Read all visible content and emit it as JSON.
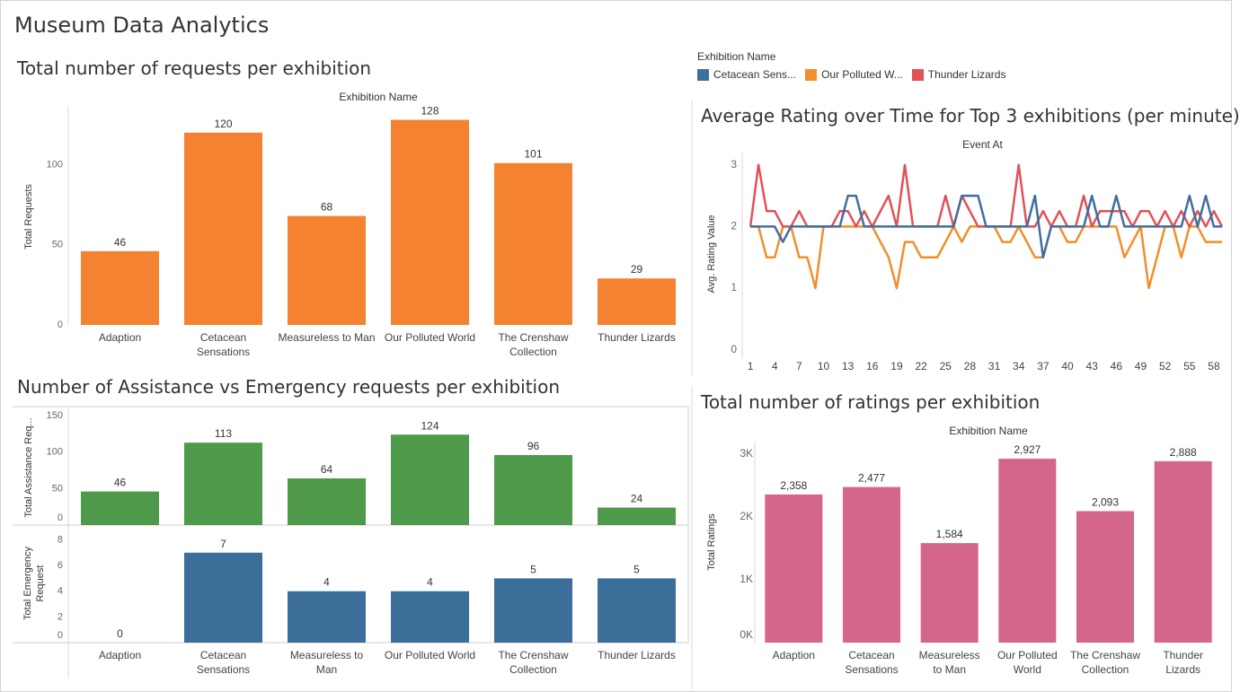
{
  "dashboard": {
    "title": "Museum Data Analytics"
  },
  "colors": {
    "orange": "#f58230",
    "green": "#4e9a4a",
    "blue": "#3b6e99",
    "pink": "#d4668a",
    "line_blue": "#3e6f9f",
    "line_orange": "#f28e2b",
    "line_red": "#e05258"
  },
  "chart_data": [
    {
      "id": "requests",
      "type": "bar",
      "title": "Total number of requests per exhibition",
      "header": "Exhibition Name",
      "ylabel": "Total Requests",
      "categories": [
        "Adaption",
        "Cetacean Sensations",
        "Measureless to Man",
        "Our Polluted World",
        "The Crenshaw Collection",
        "Thunder Lizards"
      ],
      "category_lines": [
        [
          "Adaption"
        ],
        [
          "Cetacean",
          "Sensations"
        ],
        [
          "Measureless to Man"
        ],
        [
          "Our Polluted World"
        ],
        [
          "The Crenshaw",
          "Collection"
        ],
        [
          "Thunder Lizards"
        ]
      ],
      "values": [
        46,
        120,
        68,
        128,
        101,
        29
      ],
      "labels": [
        "46",
        "120",
        "68",
        "128",
        "101",
        "29"
      ],
      "yticks": [
        0,
        50,
        100
      ],
      "ylim": [
        0,
        135
      ]
    },
    {
      "id": "assist_emerg",
      "type": "bar",
      "title": "Number of Assistance vs Emergency requests per exhibition",
      "categories": [
        "Adaption",
        "Cetacean Sensations",
        "Measureless to Man",
        "Our Polluted World",
        "The Crenshaw Collection",
        "Thunder Lizards"
      ],
      "category_lines": [
        [
          "Adaption"
        ],
        [
          "Cetacean",
          "Sensations"
        ],
        [
          "Measureless to",
          "Man"
        ],
        [
          "Our Polluted World"
        ],
        [
          "The Crenshaw",
          "Collection"
        ],
        [
          "Thunder Lizards"
        ]
      ],
      "series": [
        {
          "name": "Total Assistance Requests",
          "axis_label": "Total Assistance Req...",
          "values": [
            46,
            113,
            64,
            124,
            96,
            24
          ],
          "labels": [
            "46",
            "113",
            "64",
            "124",
            "96",
            "24"
          ],
          "yticks": [
            0,
            50,
            100,
            150
          ],
          "ylim": [
            0,
            160
          ]
        },
        {
          "name": "Total Emergency Request",
          "axis_label_lines": [
            "Total Emergency",
            "Request"
          ],
          "values": [
            0,
            7,
            4,
            4,
            5,
            5
          ],
          "labels": [
            "0",
            "7",
            "4",
            "4",
            "5",
            "5"
          ],
          "yticks": [
            0,
            2,
            4,
            6,
            8
          ],
          "ylim": [
            0,
            8.8
          ]
        }
      ]
    },
    {
      "id": "ratings_time",
      "type": "line",
      "title": "Average Rating over Time for Top 3 exhibitions (per minute)",
      "header": "Event At",
      "ylabel": "Avg. Rating Value",
      "legend_title": "Exhibition Name",
      "legend_placement": "top",
      "xticks": [
        1,
        4,
        7,
        10,
        13,
        16,
        19,
        22,
        25,
        28,
        31,
        34,
        37,
        40,
        43,
        46,
        49,
        52,
        55,
        58
      ],
      "yticks": [
        0,
        1,
        2,
        3
      ],
      "xlim": [
        0,
        59
      ],
      "ylim": [
        -0.15,
        3.2
      ],
      "series": [
        {
          "name": "Cetacean Sens...",
          "x": [
            1,
            2,
            3,
            4,
            5,
            6,
            7,
            8,
            9,
            10,
            11,
            12,
            13,
            14,
            15,
            16,
            17,
            18,
            19,
            20,
            21,
            22,
            23,
            24,
            25,
            26,
            27,
            28,
            29,
            30,
            31,
            32,
            33,
            34,
            35,
            36,
            37,
            38,
            39,
            40,
            41,
            42,
            43,
            44,
            45,
            46,
            47,
            48,
            49,
            50,
            51,
            52,
            53,
            54,
            55,
            56,
            57,
            58,
            59
          ],
          "y": [
            2,
            2,
            2,
            2,
            1.75,
            2,
            2,
            2,
            2,
            2,
            2,
            2,
            2.5,
            2.5,
            2,
            2,
            2,
            2,
            2,
            2,
            2,
            2,
            2,
            2,
            2,
            2,
            2.5,
            2.5,
            2.5,
            2,
            2,
            2,
            2,
            2,
            2,
            2.5,
            1.5,
            2,
            2,
            2,
            2,
            2,
            2.5,
            2,
            2,
            2.5,
            2,
            2,
            2,
            2,
            2,
            2,
            2,
            2,
            2.5,
            2,
            2.5,
            2,
            2
          ]
        },
        {
          "name": "Our Polluted W...",
          "x": [
            1,
            2,
            3,
            4,
            5,
            6,
            7,
            8,
            9,
            10,
            11,
            12,
            13,
            14,
            15,
            16,
            17,
            18,
            19,
            20,
            21,
            22,
            23,
            24,
            25,
            26,
            27,
            28,
            29,
            30,
            31,
            32,
            33,
            34,
            35,
            36,
            37,
            38,
            39,
            40,
            41,
            42,
            43,
            44,
            45,
            46,
            47,
            48,
            49,
            50,
            51,
            52,
            53,
            54,
            55,
            56,
            57,
            58,
            59
          ],
          "y": [
            2,
            2,
            1.5,
            1.5,
            2,
            2,
            1.5,
            1.5,
            1,
            2,
            2,
            2,
            2,
            2,
            2,
            2,
            1.75,
            1.5,
            1,
            1.75,
            1.75,
            1.5,
            1.5,
            1.5,
            1.75,
            2,
            1.75,
            2,
            2,
            2,
            2,
            1.75,
            1.75,
            2,
            1.75,
            1.5,
            1.5,
            2,
            2,
            1.75,
            1.75,
            2,
            2,
            2,
            2,
            2,
            1.5,
            1.75,
            2,
            1,
            1.5,
            2,
            2,
            1.5,
            2,
            2,
            1.75,
            1.75,
            1.75
          ]
        },
        {
          "name": "Thunder Lizards",
          "x": [
            1,
            2,
            3,
            4,
            5,
            6,
            7,
            8,
            9,
            10,
            11,
            12,
            13,
            14,
            15,
            16,
            17,
            18,
            19,
            20,
            21,
            22,
            23,
            24,
            25,
            26,
            27,
            28,
            29,
            30,
            31,
            32,
            33,
            34,
            35,
            36,
            37,
            38,
            39,
            40,
            41,
            42,
            43,
            44,
            45,
            46,
            47,
            48,
            49,
            50,
            51,
            52,
            53,
            54,
            55,
            56,
            57,
            58,
            59
          ],
          "y": [
            2,
            3,
            2.25,
            2.25,
            2,
            2,
            2.25,
            2,
            2,
            2,
            2,
            2.25,
            2.25,
            2,
            2.25,
            2,
            2.25,
            2.5,
            2,
            3,
            2,
            2,
            2,
            2,
            2.5,
            2,
            2.5,
            2.25,
            2,
            2,
            2,
            2,
            2,
            3,
            2,
            2,
            2.25,
            2,
            2.25,
            2,
            2,
            2.5,
            2,
            2.25,
            2.25,
            2.25,
            2.25,
            2,
            2.25,
            2.25,
            2,
            2.25,
            2,
            2.25,
            2,
            2.25,
            2,
            2.25,
            2
          ]
        }
      ]
    },
    {
      "id": "ratings_total",
      "type": "bar",
      "title": "Total number of ratings per exhibition",
      "header": "Exhibition Name",
      "ylabel": "Total Ratings",
      "categories": [
        "Adaption",
        "Cetacean Sensations",
        "Measureless to Man",
        "Our Polluted World",
        "The Crenshaw Collection",
        "Thunder Lizards"
      ],
      "category_lines": [
        [
          "Adaption"
        ],
        [
          "Cetacean",
          "Sensations"
        ],
        [
          "Measureless",
          "to Man"
        ],
        [
          "Our Polluted",
          "World"
        ],
        [
          "The Crenshaw",
          "Collection"
        ],
        [
          "Thunder",
          "Lizards"
        ]
      ],
      "values": [
        2358,
        2477,
        1584,
        2927,
        2093,
        2888
      ],
      "labels": [
        "2,358",
        "2,477",
        "1,584",
        "2,927",
        "2,093",
        "2,888"
      ],
      "yticks": [
        0,
        1000,
        2000,
        3000
      ],
      "ytick_labels": [
        "0K",
        "1K",
        "2K",
        "3K"
      ],
      "ylim": [
        0,
        3200
      ]
    }
  ]
}
